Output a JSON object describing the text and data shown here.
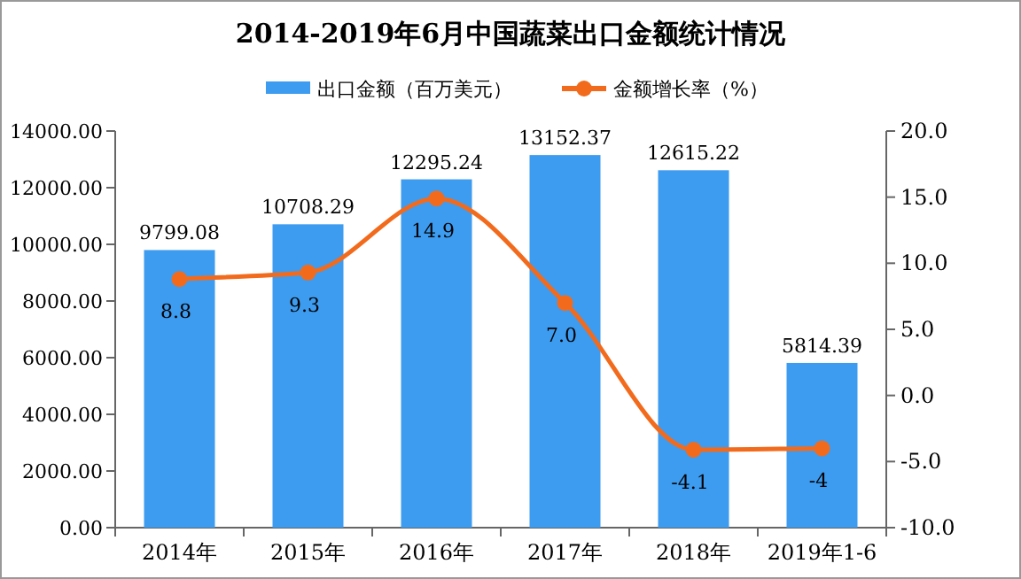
{
  "chart_data": {
    "type": "bar",
    "title": "2014-2019年6月中国蔬菜出口金额统计情况",
    "categories": [
      "2014年",
      "2015年",
      "2016年",
      "2017年",
      "2018年",
      "2019年1-6"
    ],
    "series": [
      {
        "name": "出口金额（百万美元）",
        "color": "#3d9cf0",
        "values": [
          9799.08,
          10708.29,
          12295.24,
          13152.37,
          12615.22,
          5814.39
        ]
      },
      {
        "name": "金额增长率（%）",
        "type": "line",
        "axis": "y2",
        "color": "#f26b1d",
        "marker": "circle",
        "values": [
          8.8,
          9.3,
          14.9,
          7.0,
          -4.1,
          -4
        ],
        "value_labels": [
          "8.8",
          "9.3",
          "14.9",
          "7.0",
          "-4.1",
          "-4"
        ]
      }
    ],
    "ylim": [
      0,
      14000
    ],
    "yticks": [
      {
        "value": 0,
        "label": "0.00"
      },
      {
        "value": 2000,
        "label": "2000.00"
      },
      {
        "value": 4000,
        "label": "4000.00"
      },
      {
        "value": 6000,
        "label": "6000.00"
      },
      {
        "value": 8000,
        "label": "8000.00"
      },
      {
        "value": 10000,
        "label": "10000.00"
      },
      {
        "value": 12000,
        "label": "12000.00"
      },
      {
        "value": 14000,
        "label": "14000.00"
      }
    ],
    "y2lim": [
      -10,
      20
    ],
    "y2ticks": [
      {
        "value": -10,
        "label": "-10.0"
      },
      {
        "value": -5,
        "label": "-5.0"
      },
      {
        "value": 0,
        "label": "0.0"
      },
      {
        "value": 5,
        "label": "5.0"
      },
      {
        "value": 10,
        "label": "10.0"
      },
      {
        "value": 15,
        "label": "15.0"
      },
      {
        "value": 20,
        "label": "20.0"
      }
    ],
    "data_labels": true,
    "legend": "top",
    "grid": false
  }
}
